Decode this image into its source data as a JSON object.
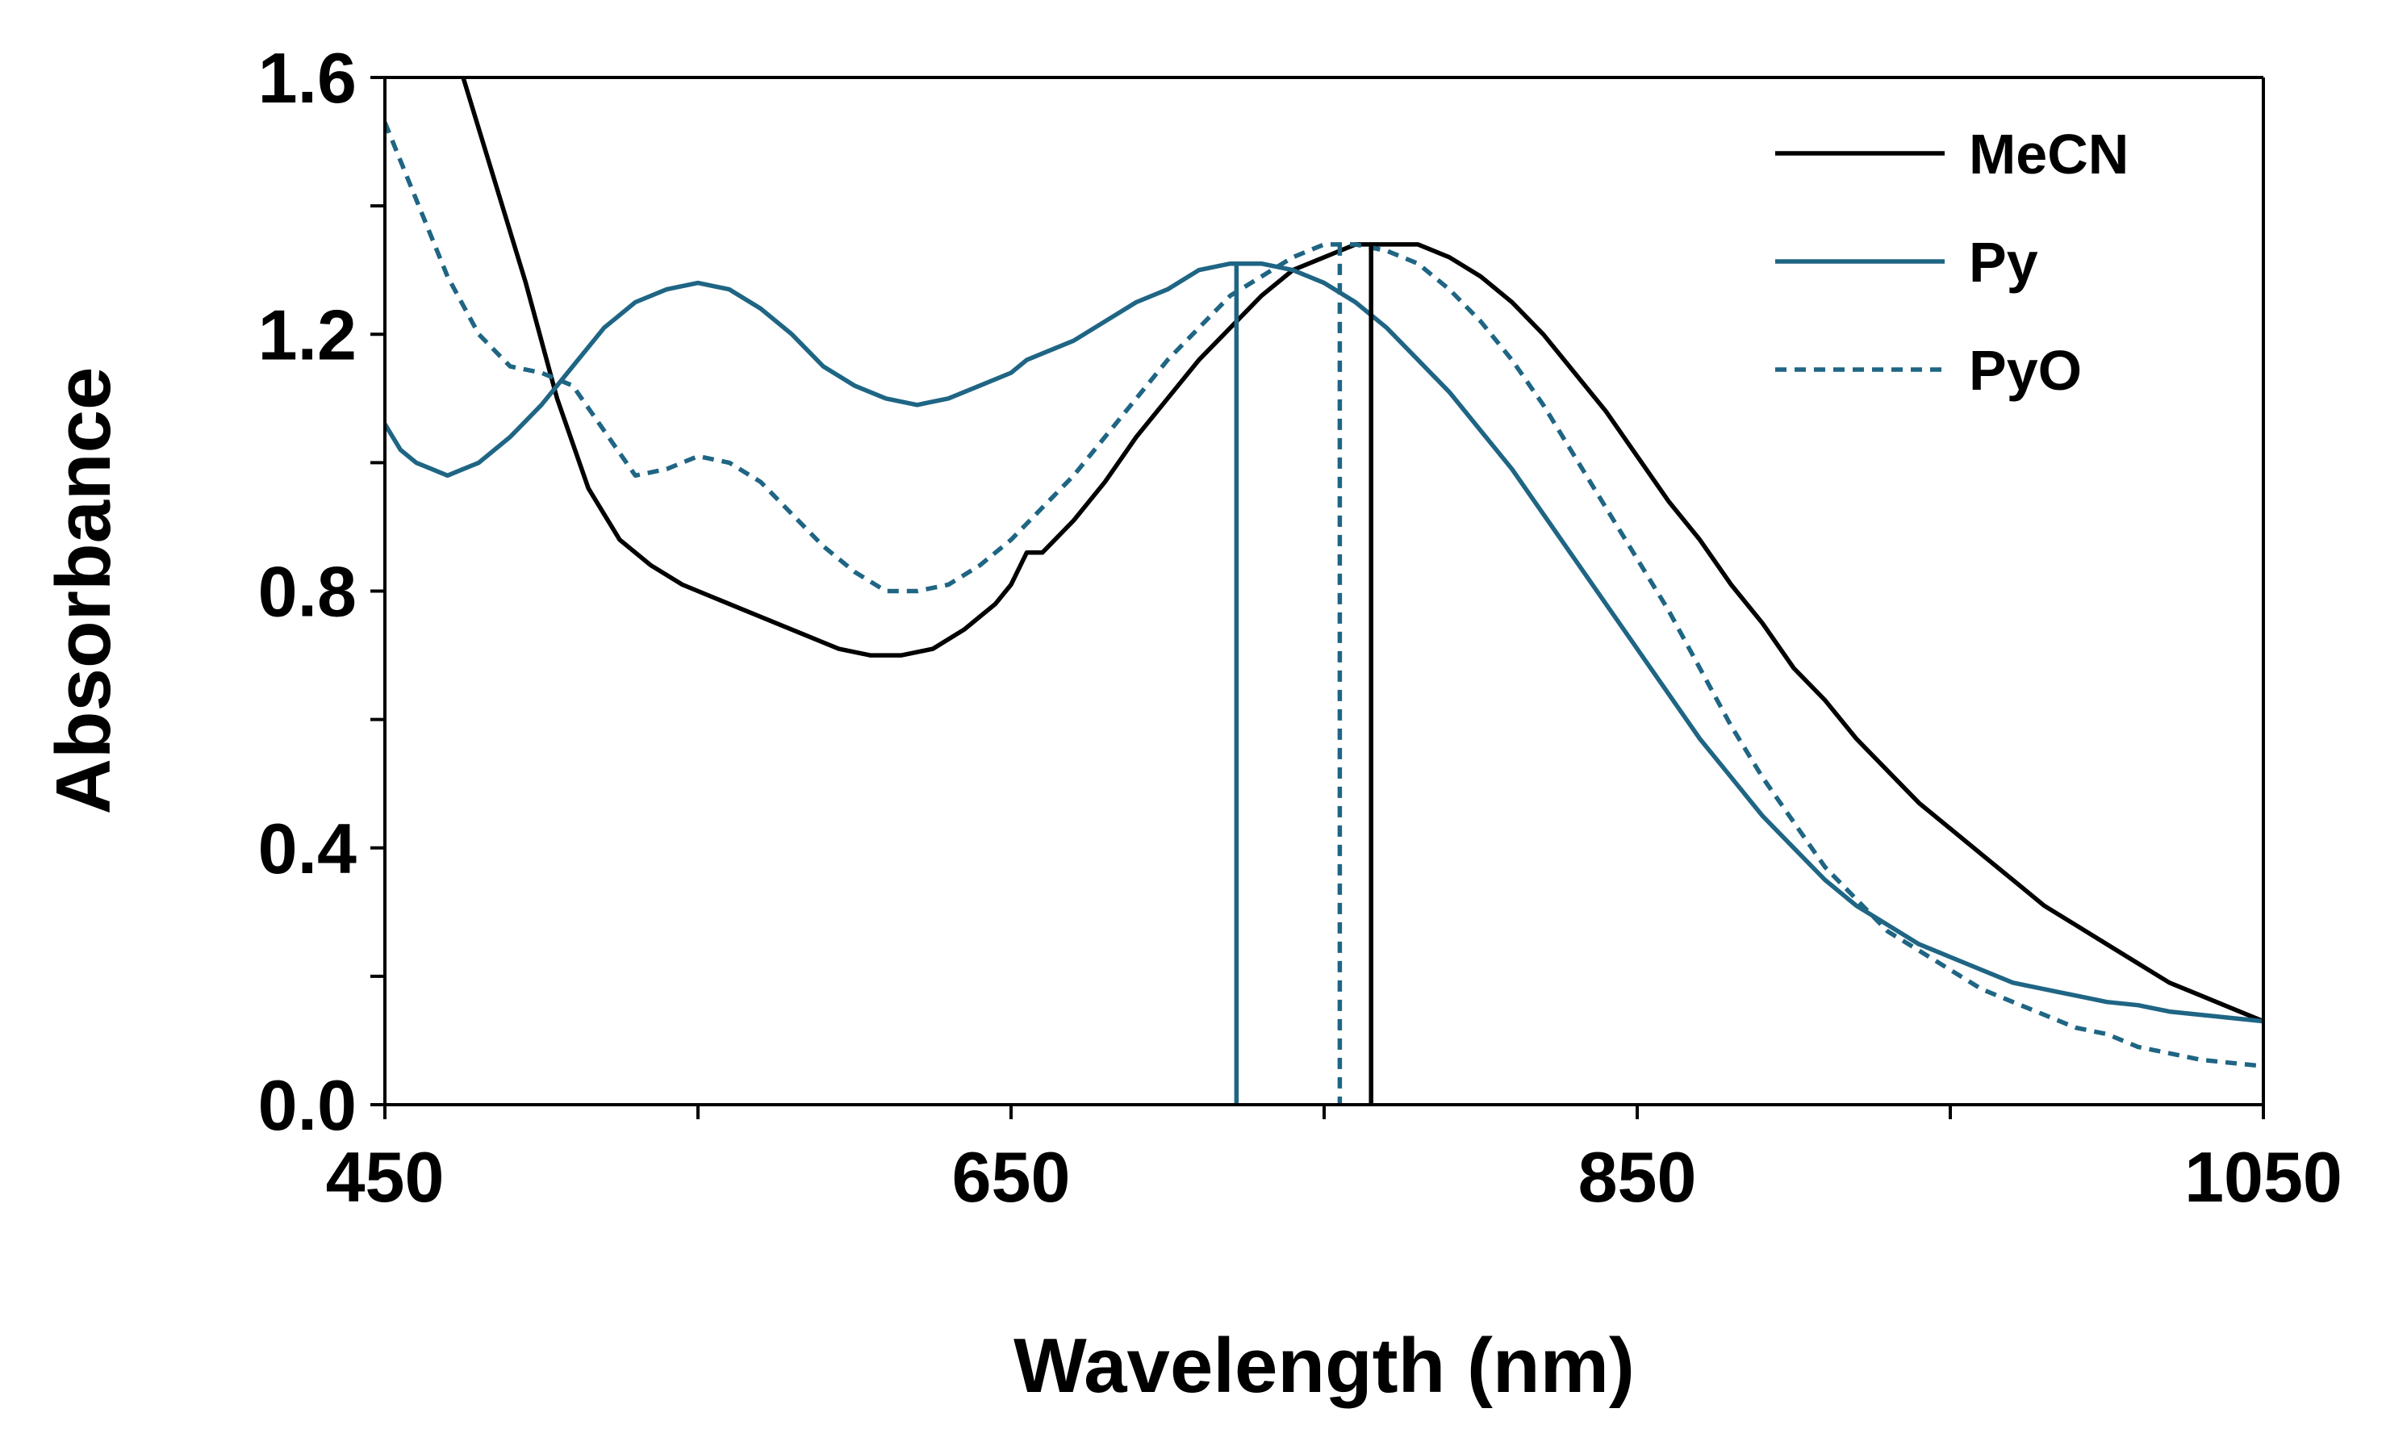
{
  "chart_data": {
    "type": "line",
    "title": "",
    "xlabel": "Wavelength (nm)",
    "ylabel": "Absorbance",
    "xlim": [
      450,
      1050
    ],
    "ylim": [
      0.0,
      1.6
    ],
    "xticks": [
      450,
      650,
      850,
      1050
    ],
    "xtick_labels": [
      "450",
      "650",
      "850",
      "1050"
    ],
    "x_minor_ticks": [
      550,
      750,
      950
    ],
    "yticks": [
      0.0,
      0.4,
      0.8,
      1.2,
      1.6
    ],
    "ytick_labels": [
      "0.0",
      "0.4",
      "0.8",
      "1.2",
      "1.6"
    ],
    "y_minor_ticks": [
      0.2,
      0.6,
      1.0,
      1.4
    ],
    "grid": false,
    "legend_position": "top-right",
    "series": [
      {
        "name": "MeCN",
        "color": "#000000",
        "style": "solid",
        "peak": [
          765,
          1.34
        ],
        "points": [
          [
            475,
            1.6
          ],
          [
            485,
            1.44
          ],
          [
            495,
            1.28
          ],
          [
            505,
            1.1
          ],
          [
            515,
            0.96
          ],
          [
            525,
            0.88
          ],
          [
            535,
            0.84
          ],
          [
            545,
            0.81
          ],
          [
            555,
            0.79
          ],
          [
            565,
            0.77
          ],
          [
            575,
            0.75
          ],
          [
            585,
            0.73
          ],
          [
            595,
            0.71
          ],
          [
            605,
            0.7
          ],
          [
            615,
            0.7
          ],
          [
            625,
            0.71
          ],
          [
            635,
            0.74
          ],
          [
            645,
            0.78
          ],
          [
            650,
            0.81
          ],
          [
            655,
            0.86
          ],
          [
            660,
            0.86
          ],
          [
            670,
            0.91
          ],
          [
            680,
            0.97
          ],
          [
            690,
            1.04
          ],
          [
            700,
            1.1
          ],
          [
            710,
            1.16
          ],
          [
            720,
            1.21
          ],
          [
            730,
            1.26
          ],
          [
            740,
            1.3
          ],
          [
            750,
            1.32
          ],
          [
            760,
            1.34
          ],
          [
            770,
            1.34
          ],
          [
            780,
            1.34
          ],
          [
            790,
            1.32
          ],
          [
            800,
            1.29
          ],
          [
            810,
            1.25
          ],
          [
            820,
            1.2
          ],
          [
            830,
            1.14
          ],
          [
            840,
            1.08
          ],
          [
            850,
            1.01
          ],
          [
            860,
            0.94
          ],
          [
            870,
            0.88
          ],
          [
            880,
            0.81
          ],
          [
            890,
            0.75
          ],
          [
            900,
            0.68
          ],
          [
            910,
            0.63
          ],
          [
            920,
            0.57
          ],
          [
            930,
            0.52
          ],
          [
            940,
            0.47
          ],
          [
            950,
            0.43
          ],
          [
            960,
            0.39
          ],
          [
            970,
            0.35
          ],
          [
            980,
            0.31
          ],
          [
            990,
            0.28
          ],
          [
            1000,
            0.25
          ],
          [
            1010,
            0.22
          ],
          [
            1020,
            0.19
          ],
          [
            1030,
            0.17
          ],
          [
            1040,
            0.15
          ],
          [
            1050,
            0.13
          ]
        ]
      },
      {
        "name": "Py",
        "color": "#1f6584",
        "style": "solid",
        "peak": [
          722,
          1.31
        ],
        "points": [
          [
            450,
            1.06
          ],
          [
            455,
            1.02
          ],
          [
            460,
            1.0
          ],
          [
            465,
            0.99
          ],
          [
            470,
            0.98
          ],
          [
            475,
            0.99
          ],
          [
            480,
            1.0
          ],
          [
            490,
            1.04
          ],
          [
            500,
            1.09
          ],
          [
            510,
            1.15
          ],
          [
            520,
            1.21
          ],
          [
            530,
            1.25
          ],
          [
            540,
            1.27
          ],
          [
            550,
            1.28
          ],
          [
            560,
            1.27
          ],
          [
            570,
            1.24
          ],
          [
            580,
            1.2
          ],
          [
            590,
            1.15
          ],
          [
            600,
            1.12
          ],
          [
            610,
            1.1
          ],
          [
            620,
            1.09
          ],
          [
            630,
            1.1
          ],
          [
            640,
            1.12
          ],
          [
            650,
            1.14
          ],
          [
            655,
            1.16
          ],
          [
            660,
            1.17
          ],
          [
            670,
            1.19
          ],
          [
            680,
            1.22
          ],
          [
            690,
            1.25
          ],
          [
            700,
            1.27
          ],
          [
            710,
            1.3
          ],
          [
            720,
            1.31
          ],
          [
            730,
            1.31
          ],
          [
            740,
            1.3
          ],
          [
            750,
            1.28
          ],
          [
            760,
            1.25
          ],
          [
            770,
            1.21
          ],
          [
            780,
            1.16
          ],
          [
            790,
            1.11
          ],
          [
            800,
            1.05
          ],
          [
            810,
            0.99
          ],
          [
            820,
            0.92
          ],
          [
            830,
            0.85
          ],
          [
            840,
            0.78
          ],
          [
            850,
            0.71
          ],
          [
            860,
            0.64
          ],
          [
            870,
            0.57
          ],
          [
            880,
            0.51
          ],
          [
            890,
            0.45
          ],
          [
            900,
            0.4
          ],
          [
            910,
            0.35
          ],
          [
            920,
            0.31
          ],
          [
            930,
            0.28
          ],
          [
            940,
            0.25
          ],
          [
            950,
            0.23
          ],
          [
            960,
            0.21
          ],
          [
            970,
            0.19
          ],
          [
            980,
            0.18
          ],
          [
            990,
            0.17
          ],
          [
            1000,
            0.16
          ],
          [
            1010,
            0.155
          ],
          [
            1020,
            0.145
          ],
          [
            1030,
            0.14
          ],
          [
            1040,
            0.135
          ],
          [
            1050,
            0.13
          ]
        ]
      },
      {
        "name": "PyO",
        "color": "#1f6584",
        "style": "dashed",
        "peak": [
          755,
          1.34
        ],
        "points": [
          [
            450,
            1.53
          ],
          [
            460,
            1.41
          ],
          [
            470,
            1.29
          ],
          [
            480,
            1.2
          ],
          [
            490,
            1.15
          ],
          [
            500,
            1.14
          ],
          [
            510,
            1.12
          ],
          [
            520,
            1.05
          ],
          [
            530,
            0.98
          ],
          [
            540,
            0.99
          ],
          [
            550,
            1.01
          ],
          [
            560,
            1.0
          ],
          [
            570,
            0.97
          ],
          [
            580,
            0.92
          ],
          [
            590,
            0.87
          ],
          [
            600,
            0.83
          ],
          [
            610,
            0.8
          ],
          [
            620,
            0.8
          ],
          [
            630,
            0.81
          ],
          [
            640,
            0.84
          ],
          [
            650,
            0.88
          ],
          [
            660,
            0.93
          ],
          [
            670,
            0.98
          ],
          [
            680,
            1.04
          ],
          [
            690,
            1.1
          ],
          [
            700,
            1.16
          ],
          [
            710,
            1.21
          ],
          [
            720,
            1.26
          ],
          [
            730,
            1.29
          ],
          [
            740,
            1.32
          ],
          [
            750,
            1.34
          ],
          [
            760,
            1.34
          ],
          [
            770,
            1.33
          ],
          [
            780,
            1.31
          ],
          [
            790,
            1.27
          ],
          [
            800,
            1.22
          ],
          [
            810,
            1.16
          ],
          [
            820,
            1.09
          ],
          [
            830,
            1.01
          ],
          [
            840,
            0.93
          ],
          [
            850,
            0.85
          ],
          [
            860,
            0.77
          ],
          [
            870,
            0.68
          ],
          [
            880,
            0.59
          ],
          [
            890,
            0.51
          ],
          [
            900,
            0.44
          ],
          [
            910,
            0.37
          ],
          [
            920,
            0.32
          ],
          [
            930,
            0.27
          ],
          [
            940,
            0.24
          ],
          [
            950,
            0.21
          ],
          [
            960,
            0.18
          ],
          [
            970,
            0.16
          ],
          [
            980,
            0.14
          ],
          [
            990,
            0.12
          ],
          [
            1000,
            0.11
          ],
          [
            1010,
            0.09
          ],
          [
            1020,
            0.08
          ],
          [
            1030,
            0.07
          ],
          [
            1040,
            0.065
          ],
          [
            1050,
            0.06
          ]
        ]
      }
    ]
  }
}
